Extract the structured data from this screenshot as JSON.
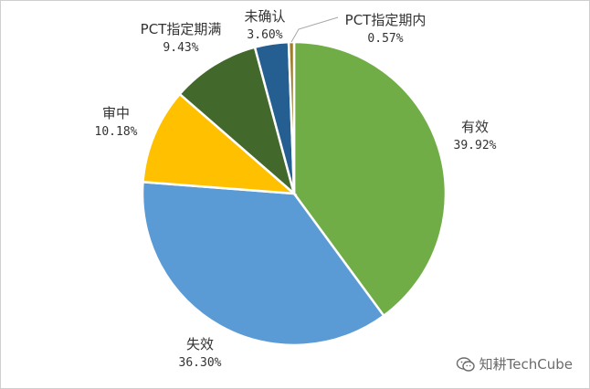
{
  "chart_data": {
    "type": "pie",
    "slices": [
      {
        "name": "有效",
        "value": 39.92,
        "label": "39.92%",
        "color": "#70ad47"
      },
      {
        "name": "失效",
        "value": 36.3,
        "label": "36.30%",
        "color": "#5b9bd5"
      },
      {
        "name": "审中",
        "value": 10.18,
        "label": "10.18%",
        "color": "#ffc000"
      },
      {
        "name": "PCT指定期满",
        "value": 9.43,
        "label": "9.43%",
        "color": "#43682b"
      },
      {
        "name": "未确认",
        "value": 3.6,
        "label": "3.60%",
        "color": "#255e91"
      },
      {
        "name": "PCT指定期内",
        "value": 0.57,
        "label": "0.57%",
        "color": "#9e7e2c"
      }
    ]
  },
  "watermark": {
    "text": "知耕TechCube",
    "icon": "wechat-icon"
  }
}
